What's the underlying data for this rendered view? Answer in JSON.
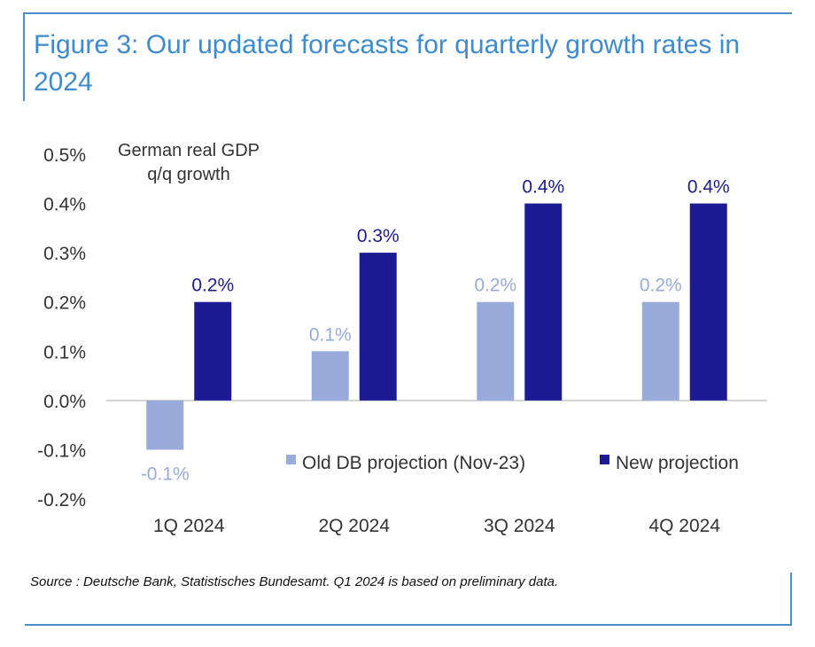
{
  "title": "Figure 3: Our updated forecasts for quarterly growth rates in 2024",
  "source": "Source : Deutsche Bank, Statistisches Bundesamt. Q1 2024 is based on preliminary data.",
  "colors": {
    "accent": "#4a8fc9",
    "title": "#3d8bd0",
    "old": "#98abdb",
    "new": "#1d1b93",
    "axis_text": "#333333",
    "zero_line": "#c8c8c8"
  },
  "chart_data": {
    "type": "bar",
    "annotation": [
      "German real GDP",
      "q/q growth"
    ],
    "categories": [
      "1Q 2024",
      "2Q 2024",
      "3Q 2024",
      "4Q 2024"
    ],
    "series": [
      {
        "name": "Old DB projection (Nov-23)",
        "values": [
          -0.1,
          0.1,
          0.2,
          0.2
        ],
        "labels": [
          "-0.1%",
          "0.1%",
          "0.2%",
          "0.2%"
        ]
      },
      {
        "name": "New projection",
        "values": [
          0.2,
          0.3,
          0.4,
          0.4
        ],
        "labels": [
          "0.2%",
          "0.3%",
          "0.4%",
          "0.4%"
        ]
      }
    ],
    "ylim": [
      -0.2,
      0.5
    ],
    "yticks": [
      0.5,
      0.4,
      0.3,
      0.2,
      0.1,
      0.0,
      -0.1,
      -0.2
    ],
    "ytick_labels": [
      "0.5%",
      "0.4%",
      "0.3%",
      "0.2%",
      "0.1%",
      "0.0%",
      "-0.1%",
      "-0.2%"
    ],
    "legend_position": "lower-right inside plot",
    "grid": false
  }
}
